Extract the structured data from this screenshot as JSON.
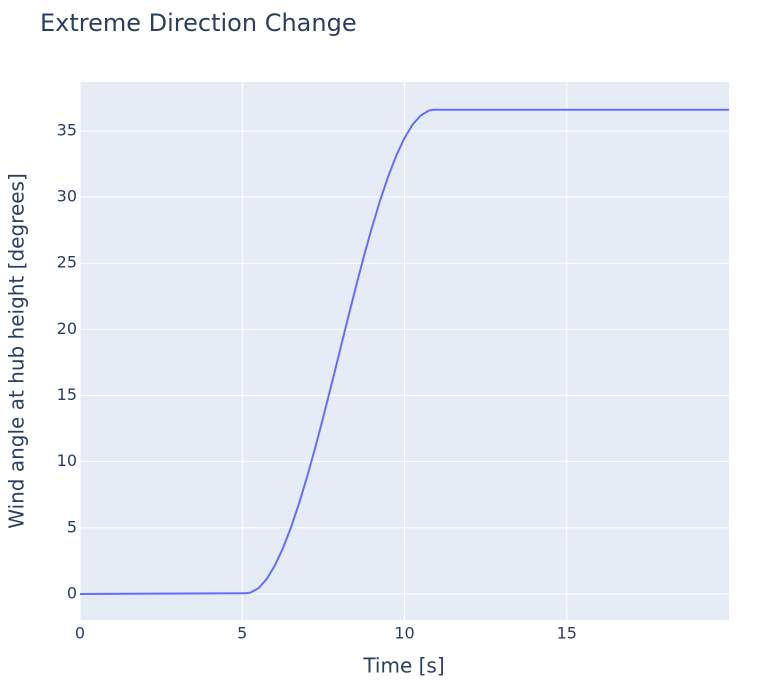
{
  "chart_data": {
    "type": "line",
    "title": "Extreme Direction Change",
    "x_label": "Time [s]",
    "y_label": "Wind angle at hub height [degrees]",
    "x": [
      0,
      5,
      5.1,
      5.25,
      5.5,
      5.75,
      6,
      6.25,
      6.5,
      6.75,
      7,
      7.25,
      7.5,
      7.75,
      8,
      8.25,
      8.5,
      8.75,
      9,
      9.25,
      9.5,
      9.75,
      10,
      10.25,
      10.5,
      10.75,
      10.9,
      20
    ],
    "series": [
      {
        "color": "#636efa",
        "values": [
          0,
          0.05,
          0.05,
          0.1,
          0.43,
          1.12,
          2.13,
          3.44,
          5.02,
          6.84,
          8.87,
          11.07,
          13.4,
          15.83,
          18.3,
          20.77,
          23.2,
          25.53,
          27.73,
          29.76,
          31.58,
          33.16,
          34.47,
          35.48,
          36.17,
          36.54,
          36.6,
          36.6
        ]
      }
    ],
    "xlim": [
      0,
      20
    ],
    "ylim": [
      -1.97,
      38.7
    ],
    "xticks": [
      0,
      5,
      10,
      15
    ],
    "yticks": [
      0,
      5,
      10,
      15,
      20,
      25,
      30,
      35
    ],
    "grid": true,
    "background": "#e5ecf6"
  }
}
